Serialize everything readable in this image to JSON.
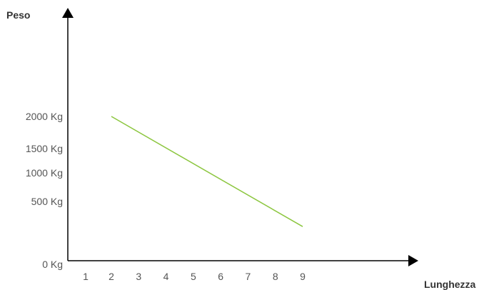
{
  "chart_data": {
    "type": "line",
    "xlabel": "Lunghezza",
    "ylabel": "Peso",
    "x_ticks": [
      "1",
      "2",
      "3",
      "4",
      "5",
      "6",
      "7",
      "8",
      "9"
    ],
    "y_ticks": [
      "0  Kg",
      "500  Kg",
      "1000 Kg",
      "1500 Kg",
      "2000 Kg"
    ],
    "series": [
      {
        "x": [
          2,
          9
        ],
        "y": [
          2000,
          300
        ],
        "color": "#8cc63f"
      }
    ],
    "xlim": [
      0,
      9
    ],
    "ylim": [
      0,
      2000
    ],
    "grid": false,
    "legend": "none"
  }
}
